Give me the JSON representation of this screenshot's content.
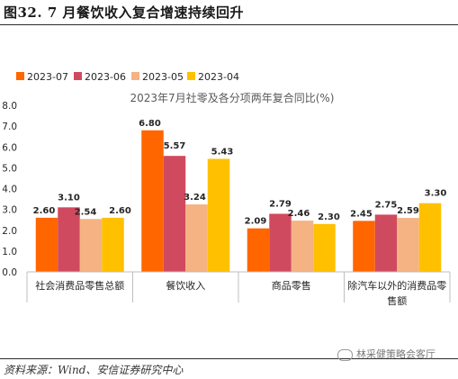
{
  "figure_title": "图32. 7 月餐饮收入复合增速持续回升",
  "source": "资料来源：Wind、安信证券研究中心",
  "watermark": "林采健策略会客厅",
  "chart_data": {
    "type": "bar",
    "title": "2023年7月社零及各分项两年复合同比(%)",
    "categories": [
      "社会消费品零售总额",
      "餐饮收入",
      "商品零售",
      "除汽车以外的消费品零售额"
    ],
    "category_display": [
      [
        "社会消费品零售总额"
      ],
      [
        "餐饮收入"
      ],
      [
        "商品零售"
      ],
      [
        "除汽车以外的消费品零",
        "售额"
      ]
    ],
    "series": [
      {
        "name": "2023-07",
        "color": "#ff6600",
        "values": [
          2.6,
          6.8,
          2.09,
          2.45
        ]
      },
      {
        "name": "2023-06",
        "color": "#d04a5f",
        "values": [
          3.1,
          5.57,
          2.79,
          2.75
        ]
      },
      {
        "name": "2023-05",
        "color": "#f5b283",
        "values": [
          2.54,
          3.24,
          2.46,
          2.59
        ]
      },
      {
        "name": "2023-04",
        "color": "#ffc000",
        "values": [
          2.6,
          5.43,
          2.3,
          3.3
        ]
      }
    ],
    "ylim": [
      0,
      8
    ],
    "yticks": [
      "0.0",
      "1.0",
      "2.0",
      "3.0",
      "4.0",
      "5.0",
      "6.0",
      "7.0",
      "8.0"
    ],
    "grid": false,
    "legend_position": "top-left"
  }
}
